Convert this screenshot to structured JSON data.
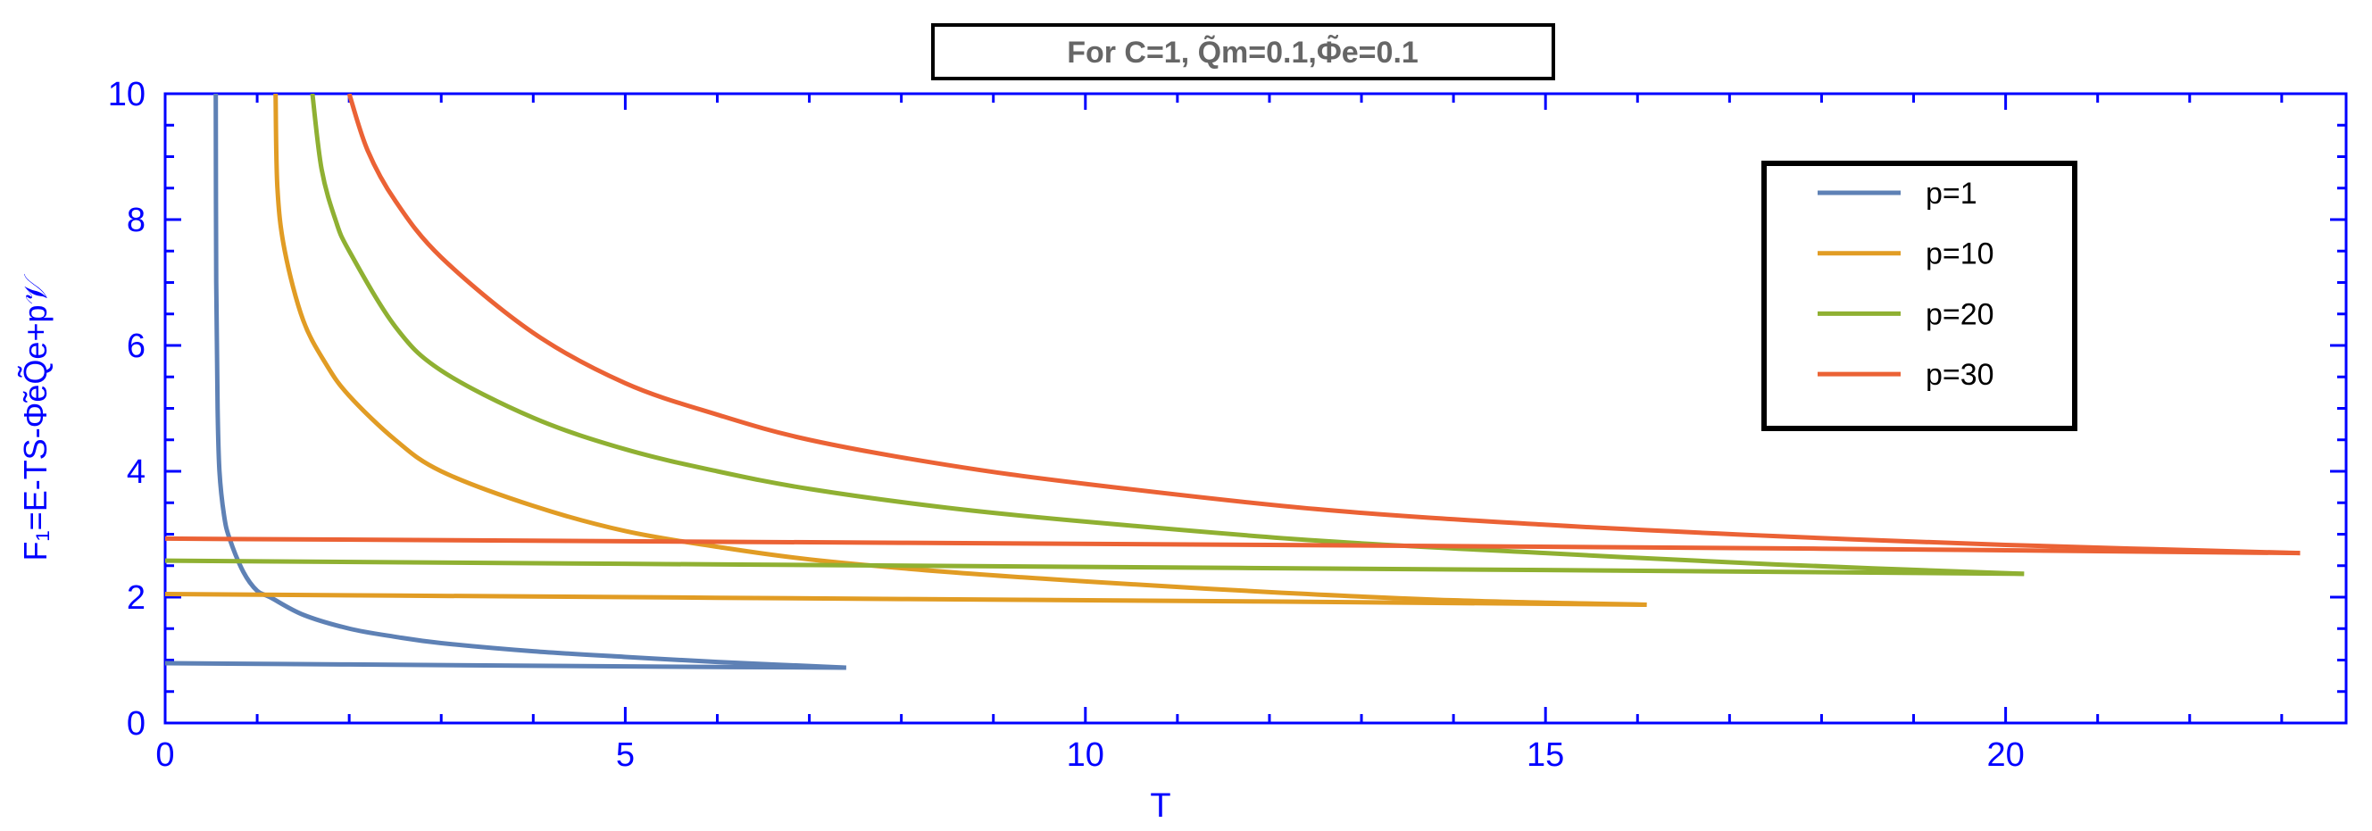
{
  "chart_data": {
    "type": "line",
    "title": "For C=1, Q̃m=0.1,Φ̃e=0.1",
    "xlabel": "T",
    "ylabel": "F₁=E-TS-Φ̃eQ̃e+p𝒱",
    "xlim": [
      0,
      23.7
    ],
    "ylim": [
      0,
      10
    ],
    "xticks": [
      "0",
      "5",
      "10",
      "15",
      "20"
    ],
    "yticks": [
      "0",
      "2",
      "4",
      "6",
      "8",
      "10"
    ],
    "grid": false,
    "legend_position": "top-right",
    "axis_color": "#0000ff",
    "series": [
      {
        "name": "p=1",
        "color": "#5e81b5",
        "upper": [
          [
            0.55,
            10
          ],
          [
            0.555,
            7
          ],
          [
            0.57,
            5
          ],
          [
            0.59,
            4
          ],
          [
            0.64,
            3.3
          ],
          [
            0.7,
            2.93
          ],
          [
            0.85,
            2.4
          ],
          [
            1.0,
            2.1
          ],
          [
            1.14,
            2.0
          ],
          [
            1.5,
            1.72
          ],
          [
            2,
            1.5
          ],
          [
            2.5,
            1.37
          ],
          [
            3,
            1.27
          ],
          [
            4,
            1.14
          ],
          [
            5,
            1.05
          ],
          [
            6,
            0.97
          ],
          [
            7.4,
            0.88
          ]
        ],
        "lower": [
          [
            0,
            0.95
          ],
          [
            2,
            0.93
          ],
          [
            4,
            0.91
          ],
          [
            6,
            0.89
          ],
          [
            7.4,
            0.88
          ]
        ]
      },
      {
        "name": "p=10",
        "color": "#e19c24",
        "upper": [
          [
            1.2,
            10
          ],
          [
            1.22,
            8.5
          ],
          [
            1.3,
            7.5
          ],
          [
            1.5,
            6.4
          ],
          [
            1.75,
            5.7
          ],
          [
            2,
            5.2
          ],
          [
            2.5,
            4.5
          ],
          [
            3,
            4.0
          ],
          [
            4,
            3.45
          ],
          [
            5,
            3.05
          ],
          [
            6,
            2.8
          ],
          [
            7,
            2.6
          ],
          [
            8.5,
            2.4
          ],
          [
            10,
            2.25
          ],
          [
            12,
            2.08
          ],
          [
            14,
            1.95
          ],
          [
            16.1,
            1.88
          ]
        ],
        "lower": [
          [
            0,
            2.05
          ],
          [
            4,
            2.01
          ],
          [
            8,
            1.97
          ],
          [
            12,
            1.93
          ],
          [
            16.1,
            1.88
          ]
        ]
      },
      {
        "name": "p=20",
        "color": "#8fb032",
        "upper": [
          [
            1.6,
            10
          ],
          [
            1.7,
            8.8
          ],
          [
            1.85,
            8
          ],
          [
            2,
            7.5
          ],
          [
            2.5,
            6.3
          ],
          [
            3,
            5.6
          ],
          [
            4,
            4.85
          ],
          [
            5,
            4.35
          ],
          [
            6,
            4.0
          ],
          [
            7,
            3.72
          ],
          [
            8.5,
            3.42
          ],
          [
            10,
            3.2
          ],
          [
            12.5,
            2.9
          ],
          [
            15,
            2.7
          ],
          [
            17.5,
            2.52
          ],
          [
            20.2,
            2.37
          ]
        ],
        "lower": [
          [
            0,
            2.58
          ],
          [
            5,
            2.53
          ],
          [
            10,
            2.48
          ],
          [
            15,
            2.43
          ],
          [
            20.2,
            2.37
          ]
        ]
      },
      {
        "name": "p=30",
        "color": "#eb6235",
        "upper": [
          [
            2.0,
            10
          ],
          [
            2.2,
            9.1
          ],
          [
            2.5,
            8.3
          ],
          [
            3,
            7.4
          ],
          [
            4,
            6.2
          ],
          [
            5,
            5.4
          ],
          [
            6,
            4.9
          ],
          [
            7,
            4.5
          ],
          [
            8.5,
            4.1
          ],
          [
            10,
            3.8
          ],
          [
            12.5,
            3.4
          ],
          [
            15,
            3.15
          ],
          [
            17.5,
            2.97
          ],
          [
            20,
            2.83
          ],
          [
            23.2,
            2.7
          ]
        ],
        "lower": [
          [
            0,
            2.93
          ],
          [
            6,
            2.88
          ],
          [
            12,
            2.83
          ],
          [
            18,
            2.77
          ],
          [
            23.2,
            2.7
          ]
        ]
      }
    ]
  }
}
